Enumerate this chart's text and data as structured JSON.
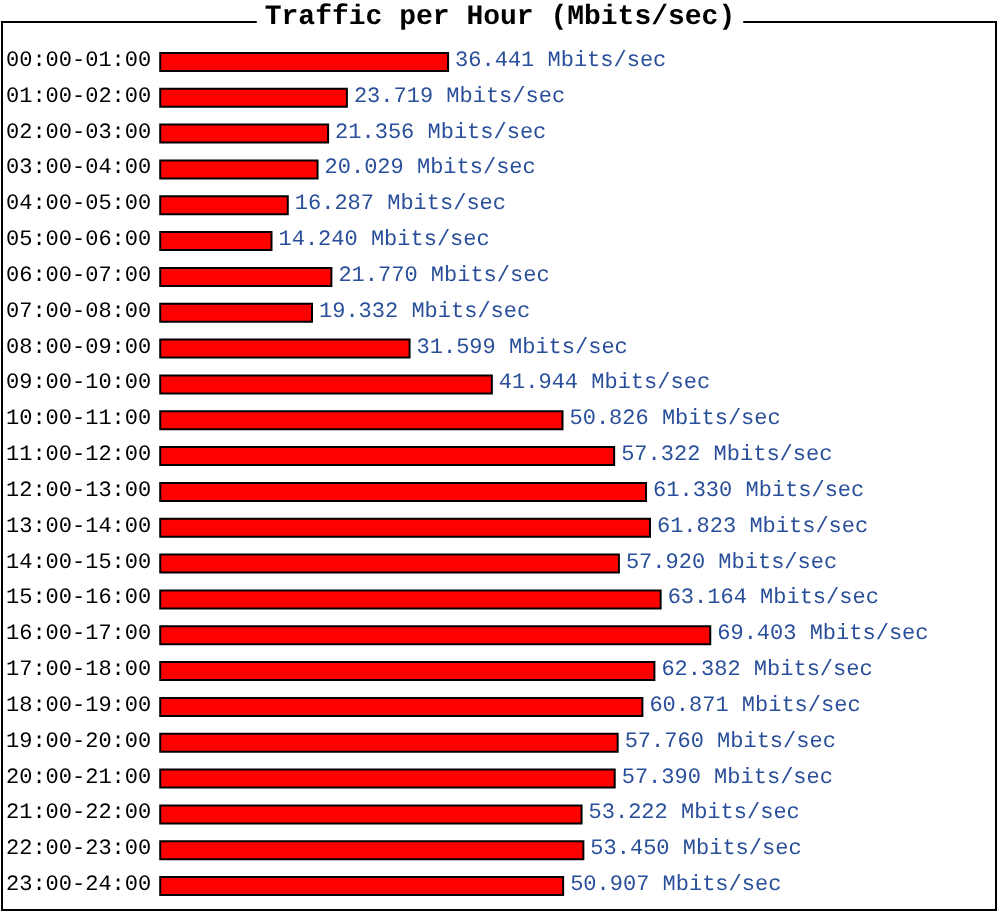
{
  "chart_data": {
    "type": "bar",
    "orientation": "horizontal",
    "title": "Traffic per Hour (Mbits/sec)",
    "categories": [
      "00:00-01:00",
      "01:00-02:00",
      "02:00-03:00",
      "03:00-04:00",
      "04:00-05:00",
      "05:00-06:00",
      "06:00-07:00",
      "07:00-08:00",
      "08:00-09:00",
      "09:00-10:00",
      "10:00-11:00",
      "11:00-12:00",
      "12:00-13:00",
      "13:00-14:00",
      "14:00-15:00",
      "15:00-16:00",
      "16:00-17:00",
      "17:00-18:00",
      "18:00-19:00",
      "19:00-20:00",
      "20:00-21:00",
      "21:00-22:00",
      "22:00-23:00",
      "23:00-24:00"
    ],
    "values": [
      36.441,
      23.719,
      21.356,
      20.029,
      16.287,
      14.24,
      21.77,
      19.332,
      31.599,
      41.944,
      50.826,
      57.322,
      61.33,
      61.823,
      57.92,
      63.164,
      69.403,
      62.382,
      60.871,
      57.76,
      57.39,
      53.222,
      53.45,
      50.907
    ],
    "value_labels": [
      "36.441 Mbits/sec",
      "23.719 Mbits/sec",
      "21.356 Mbits/sec",
      "20.029 Mbits/sec",
      "16.287 Mbits/sec",
      "14.240 Mbits/sec",
      "21.770 Mbits/sec",
      "19.332 Mbits/sec",
      "31.599 Mbits/sec",
      "41.944 Mbits/sec",
      "50.826 Mbits/sec",
      "57.322 Mbits/sec",
      "61.330 Mbits/sec",
      "61.823 Mbits/sec",
      "57.920 Mbits/sec",
      "63.164 Mbits/sec",
      "69.403 Mbits/sec",
      "62.382 Mbits/sec",
      "60.871 Mbits/sec",
      "57.760 Mbits/sec",
      "57.390 Mbits/sec",
      "53.222 Mbits/sec",
      "53.450 Mbits/sec",
      "50.907 Mbits/sec"
    ],
    "color": "#ff0000"
  }
}
